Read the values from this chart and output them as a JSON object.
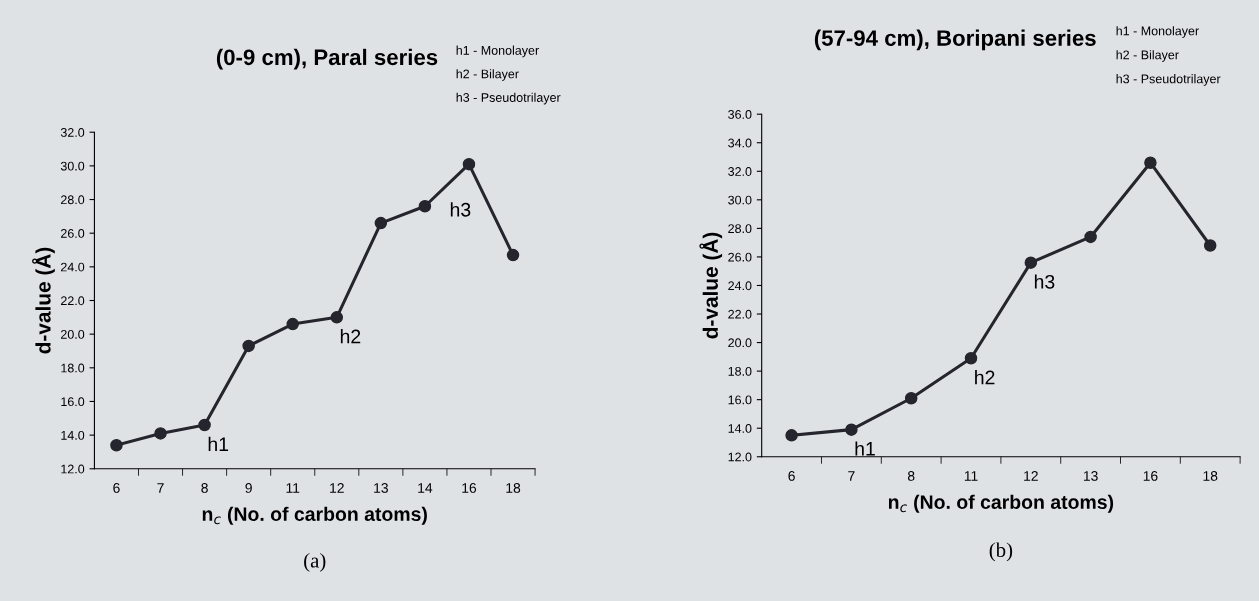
{
  "chart_data": [
    {
      "type": "line",
      "title": "(0-9 cm), Paral series",
      "subtitle": "(a)",
      "xlabel": "n$_{c}$ (No. of carbon atoms)",
      "ylabel": "d-value (Å)",
      "categories": [
        "6",
        "7",
        "8",
        "9",
        "11",
        "12",
        "13",
        "14",
        "16",
        "18"
      ],
      "series": [
        {
          "color": "#25252e",
          "values": [
            13.4,
            14.1,
            14.6,
            19.3,
            20.6,
            21.0,
            26.6,
            27.6,
            30.1,
            24.7
          ]
        }
      ],
      "ylim": [
        12.0,
        32.0
      ],
      "yticks": [
        {
          "value": 12,
          "label": "12.0"
        },
        {
          "value": 14,
          "label": "14.0"
        },
        {
          "value": 16,
          "label": "16.0"
        },
        {
          "value": 18,
          "label": "18.0"
        },
        {
          "value": 20,
          "label": "20.0"
        },
        {
          "value": 22,
          "label": "22.0"
        },
        {
          "value": 24,
          "label": "24.0"
        },
        {
          "value": 26,
          "label": "26.0"
        },
        {
          "value": 28,
          "label": "28.0"
        },
        {
          "value": 30,
          "label": "30.0"
        },
        {
          "value": 32,
          "label": "32.0"
        }
      ],
      "marker": "circle",
      "grid": false,
      "annotations": [
        "h1 - Monolayer",
        "h2 - Bilayer",
        "h3 - Pseudotrilayer",
        {
          "text": "h1",
          "x": "8",
          "y": 14.6
        },
        {
          "text": "h2",
          "x": "12",
          "y": 21.0
        },
        {
          "text": "h3",
          "x": "16",
          "y": 30.1
        }
      ]
    },
    {
      "type": "line",
      "title": "(57-94 cm), Boripani series",
      "subtitle": "(b)",
      "xlabel": "n$_{c}$ (No. of carbon atoms)",
      "ylabel": "d-value (Å)",
      "categories": [
        "6",
        "7",
        "8",
        "11",
        "12",
        "13",
        "16",
        "18"
      ],
      "series": [
        {
          "color": "#25252e",
          "values": [
            13.5,
            13.9,
            16.1,
            18.9,
            25.6,
            27.4,
            32.6,
            26.8
          ]
        }
      ],
      "ylim": [
        12.0,
        36.0
      ],
      "yticks": [
        {
          "value": 12,
          "label": "12.0"
        },
        {
          "value": 14,
          "label": "14.0"
        },
        {
          "value": 16,
          "label": "16.0"
        },
        {
          "value": 18,
          "label": "18.0"
        },
        {
          "value": 20,
          "label": "20.0"
        },
        {
          "value": 22,
          "label": "22.0"
        },
        {
          "value": 24,
          "label": "24.0"
        },
        {
          "value": 26,
          "label": "26.0"
        },
        {
          "value": 28,
          "label": "28.0"
        },
        {
          "value": 30,
          "label": "30.0"
        },
        {
          "value": 32,
          "label": "32.0"
        },
        {
          "value": 34,
          "label": "34.0"
        },
        {
          "value": 36,
          "label": "36.0"
        }
      ],
      "marker": "circle",
      "grid": false,
      "annotations": [
        "h1 - Monolayer",
        "h2 - Bilayer",
        "h3 - Pseudotrilayer",
        {
          "text": "h1",
          "x": "7",
          "y": 13.9
        },
        {
          "text": "h2",
          "x": "11",
          "y": 18.9
        },
        {
          "text": "h3",
          "x": "12",
          "y": 25.6
        }
      ]
    }
  ]
}
